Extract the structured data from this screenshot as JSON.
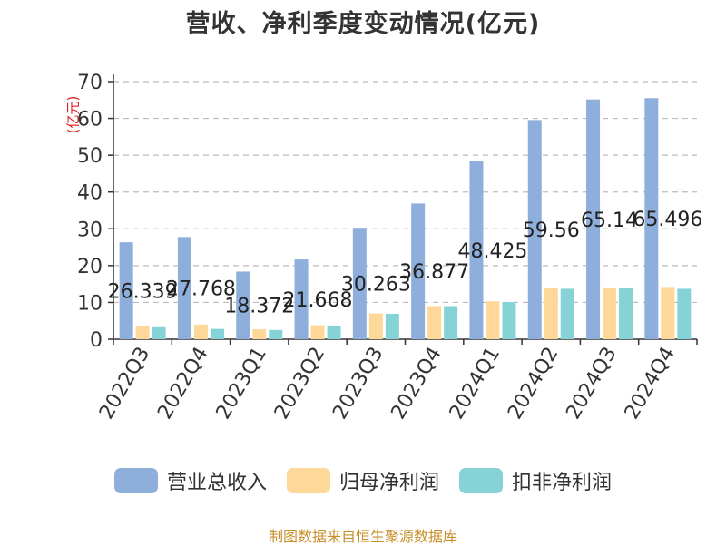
{
  "title": "营收、净利季度变动情况(亿元)",
  "unit_label": "(亿元)",
  "source": "制图数据来自恒生聚源数据库",
  "colors": {
    "revenue": "#8eaedc",
    "parent_profit": "#fdd898",
    "deducted_profit": "#85d3d6",
    "unit": "#e02020",
    "source": "#c8902a"
  },
  "chart_data": {
    "type": "bar",
    "title": "营收、净利季度变动情况(亿元)",
    "ylabel": "(亿元)",
    "ylim": [
      0,
      70
    ],
    "yticks": [
      0,
      10,
      20,
      30,
      40,
      50,
      60,
      70
    ],
    "grid": true,
    "legend_position": "bottom",
    "categories": [
      "2022Q3",
      "2022Q4",
      "2023Q1",
      "2023Q2",
      "2023Q3",
      "2023Q4",
      "2024Q1",
      "2024Q2",
      "2024Q3",
      "2024Q4"
    ],
    "series": [
      {
        "name": "营业总收入",
        "values": [
          26.339,
          27.768,
          18.372,
          21.668,
          30.263,
          36.877,
          48.425,
          59.56,
          65.14,
          65.496
        ],
        "labels": [
          "26.339",
          "27.768",
          "18.372",
          "21.668",
          "30.263",
          "36.877",
          "48.425",
          "59.56",
          "65.14",
          "65.496"
        ]
      },
      {
        "name": "归母净利润",
        "values": [
          3.7,
          4.0,
          2.7,
          3.8,
          7.0,
          9.0,
          10.3,
          13.8,
          14.0,
          14.2
        ]
      },
      {
        "name": "扣非净利润",
        "values": [
          3.5,
          2.8,
          2.5,
          3.7,
          6.9,
          9.0,
          10.1,
          13.7,
          14.0,
          13.7
        ]
      }
    ]
  }
}
